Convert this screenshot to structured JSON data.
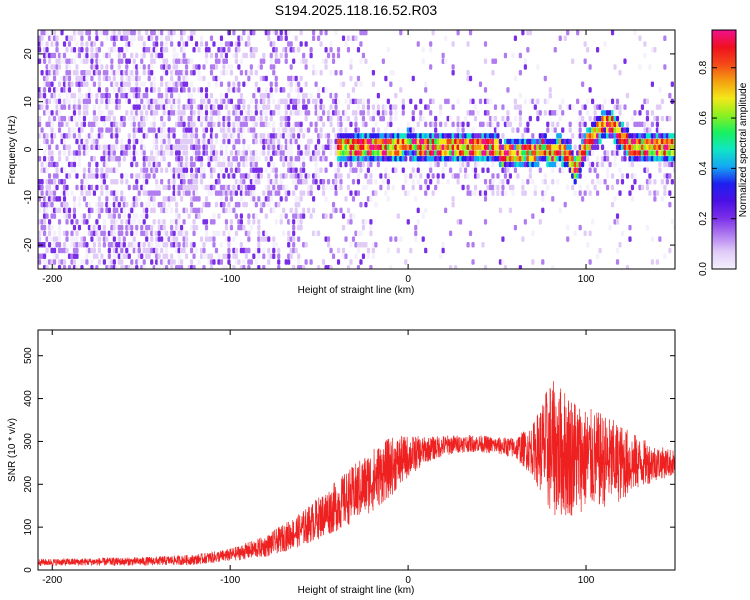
{
  "figure": {
    "title": "S194.2025.118.16.52.R03"
  },
  "colors": {
    "frame": "#000000",
    "snr_line": "#ee2020",
    "colormap": [
      "#f4f0fc",
      "#e1ccf8",
      "#b07cf0",
      "#7a2ee8",
      "#4a10e6",
      "#1e20f0",
      "#14a8f4",
      "#10e6c4",
      "#18f060",
      "#8cf020",
      "#f4e818",
      "#f4a010",
      "#f44818",
      "#f01020",
      "#f01090"
    ]
  },
  "chart_data": [
    {
      "type": "heatmap",
      "xlabel": "Height of straight line (km)",
      "ylabel": "Frequency (Hz)",
      "xlim": [
        -208,
        150
      ],
      "ylim": [
        -25,
        25
      ],
      "xticks": [
        -200,
        -100,
        0,
        100
      ],
      "yticks": [
        -20,
        -10,
        0,
        10,
        20
      ],
      "colorbar": {
        "label": "Normalized spectral amplitude",
        "range": [
          0,
          0.95
        ],
        "ticks": [
          0,
          0.2,
          0.4,
          0.6,
          0.8
        ]
      },
      "ridge": {
        "height_km": [
          -40,
          -20,
          -10,
          0,
          10,
          20,
          30,
          40,
          50,
          52,
          55,
          60,
          65,
          70,
          75,
          80,
          85,
          90,
          93,
          97,
          100,
          105,
          110,
          115,
          120,
          125,
          130,
          140,
          150
        ],
        "frequency_hz": [
          0.5,
          0,
          0,
          1,
          0,
          0.5,
          0,
          0,
          0,
          -2,
          -1,
          -1.5,
          -0.5,
          -1,
          0,
          -1,
          0,
          -2,
          -4.5,
          -1,
          1,
          3.5,
          5.5,
          4.5,
          2,
          0,
          0,
          0,
          0
        ]
      }
    },
    {
      "type": "line",
      "xlabel": "Height of straight line (km)",
      "ylabel": "SNR (10 * v/v)",
      "xlim": [
        -208,
        150
      ],
      "ylim": [
        0,
        560
      ],
      "xticks": [
        -200,
        -100,
        0,
        100
      ],
      "yticks": [
        0,
        100,
        200,
        300,
        400,
        500
      ],
      "series": [
        {
          "x": [
            -208,
            -150,
            -120,
            -100,
            -80,
            -60,
            -40,
            -20,
            -10,
            0,
            10,
            20,
            30,
            40,
            50,
            60,
            70,
            80,
            90,
            100,
            110,
            120,
            130,
            140,
            150
          ],
          "y": [
            18,
            20,
            24,
            35,
            55,
            95,
            150,
            210,
            240,
            265,
            280,
            290,
            295,
            295,
            290,
            285,
            280,
            285,
            270,
            260,
            255,
            250,
            250,
            250,
            250
          ],
          "spread": [
            8,
            10,
            12,
            15,
            25,
            40,
            60,
            75,
            70,
            50,
            30,
            25,
            20,
            20,
            20,
            25,
            60,
            160,
            150,
            120,
            110,
            90,
            60,
            40,
            30
          ]
        }
      ]
    }
  ]
}
